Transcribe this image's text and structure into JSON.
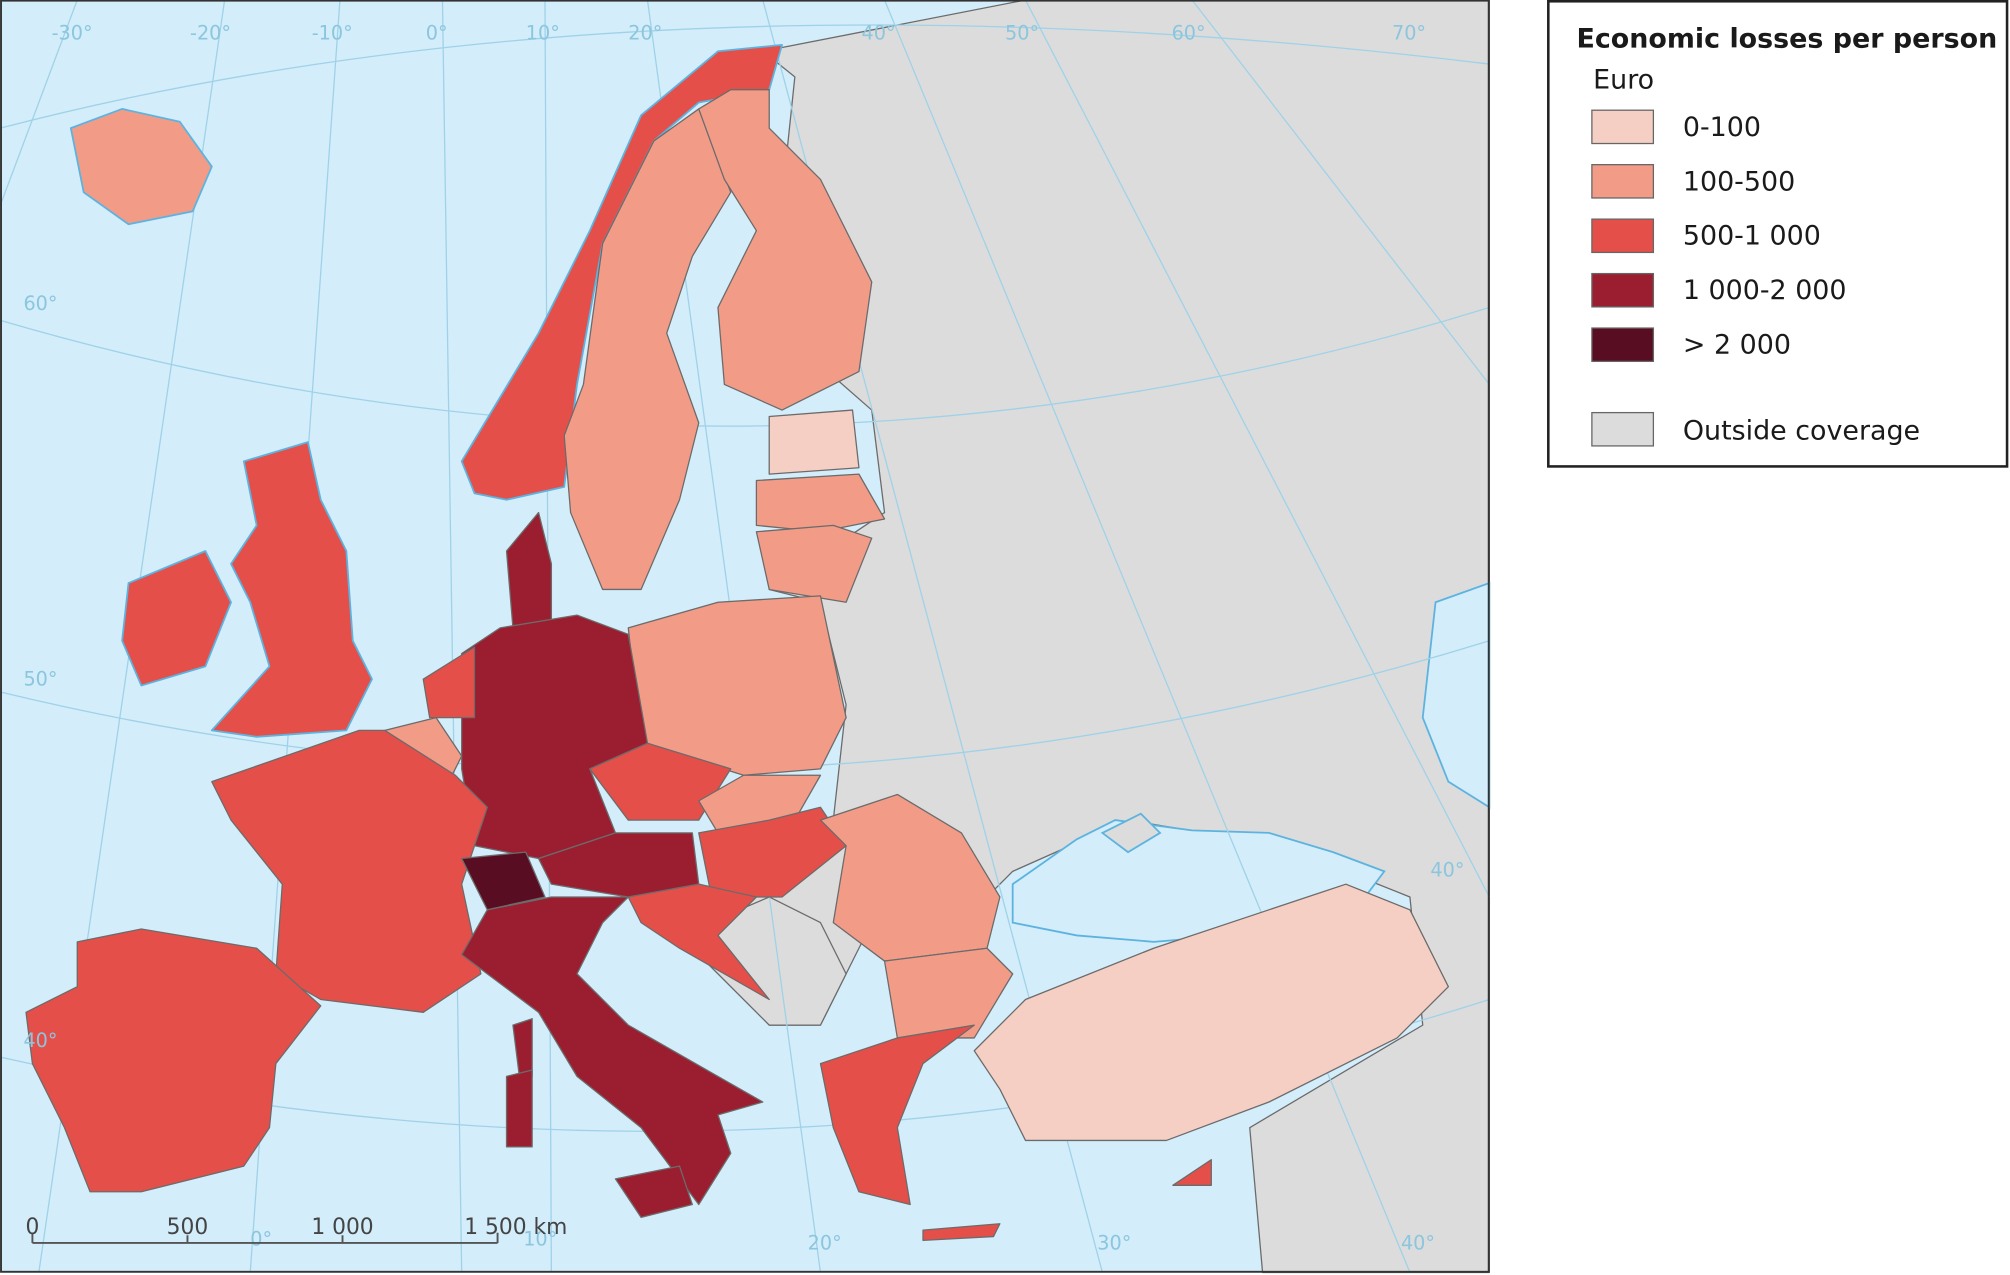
{
  "map": {
    "legend": {
      "title": "Economic losses per person",
      "unit": "Euro",
      "classes": [
        {
          "label": "0-100",
          "color": "#f6cfc4"
        },
        {
          "label": "100-500",
          "color": "#f29c88"
        },
        {
          "label": "500-1 000",
          "color": "#e54f4a"
        },
        {
          "label": "1 000-2 000",
          "color": "#9b1e30"
        },
        {
          "label": "> 2 000",
          "color": "#590d22"
        }
      ],
      "outside": {
        "label": "Outside coverage",
        "color": "#dcdcdc"
      }
    },
    "sea_color": "#d3edfa",
    "graticule_labels": [
      "-30°",
      "-20°",
      "-10°",
      "0°",
      "10°",
      "20°",
      "40°",
      "50°",
      "60°",
      "70°",
      "60°",
      "50°",
      "40°",
      "0°",
      "10°",
      "20°",
      "30°",
      "40°",
      "40°"
    ],
    "scale_bar": {
      "labels": [
        "0",
        "500",
        "1 000",
        "1 500 km"
      ]
    }
  }
}
